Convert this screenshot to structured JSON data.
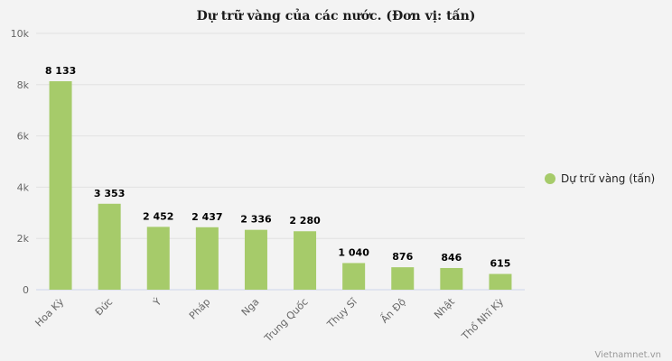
{
  "chart_data": {
    "type": "bar",
    "title": "Dự trữ vàng của các nước. (Đơn vị: tấn)",
    "categories": [
      "Hoa Kỳ",
      "Đức",
      "Ý",
      "Pháp",
      "Nga",
      "Trung Quốc",
      "Thụy Sĩ",
      "Ấn Độ",
      "Nhật",
      "Thổ Nhĩ Kỳ"
    ],
    "series": [
      {
        "name": "Dự trữ vàng (tấn)",
        "values": [
          8133,
          3353,
          2452,
          2437,
          2336,
          2280,
          1040,
          876,
          846,
          615
        ],
        "data_labels": [
          "8 133",
          "3 353",
          "2 452",
          "2 437",
          "2 336",
          "2 280",
          "1 040",
          "876",
          "846",
          "615"
        ],
        "color": "#a6cb6a"
      }
    ],
    "ylim": [
      0,
      10000
    ],
    "yticks": [
      0,
      2000,
      4000,
      6000,
      8000,
      10000
    ],
    "ytick_labels": [
      "0",
      "2k",
      "4k",
      "6k",
      "8k",
      "10k"
    ],
    "grid": true,
    "legend_position": "right"
  },
  "credit": "Vietnamnet.vn",
  "colors": {
    "background": "#f3f3f3",
    "grid": "#e2e2e2",
    "axis": "#ccd6eb"
  }
}
